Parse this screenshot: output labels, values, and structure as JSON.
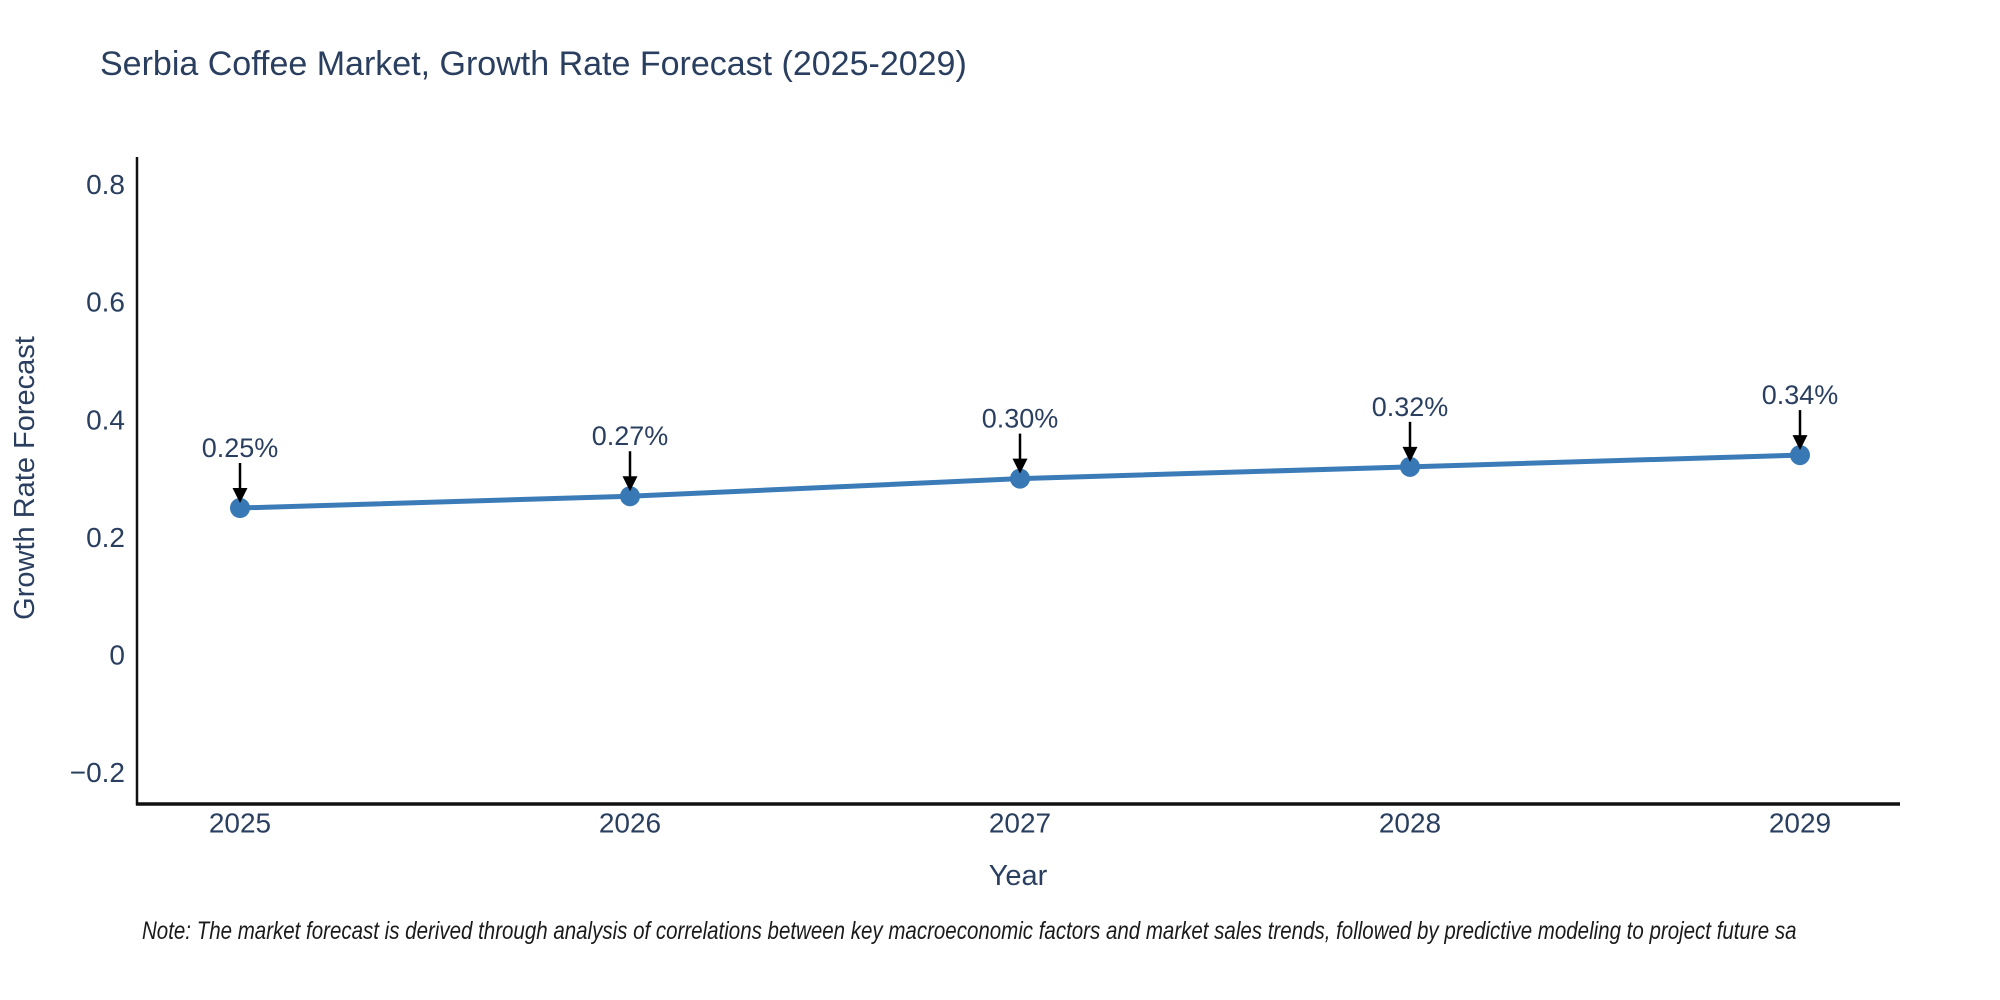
{
  "note": "Note: The market forecast is derived through analysis of correlations between key macroeconomic factors and market sales trends, followed by predictive modeling to project future sa",
  "chart_data": {
    "type": "line",
    "title": "Serbia Coffee Market, Growth Rate Forecast (2025-2029)",
    "xlabel": "Year",
    "ylabel": "Growth Rate Forecast",
    "x": [
      2025,
      2026,
      2027,
      2028,
      2029
    ],
    "xtick_labels": [
      "2025",
      "2026",
      "2027",
      "2028",
      "2029"
    ],
    "series": [
      {
        "name": "Growth Rate Forecast",
        "values": [
          0.25,
          0.27,
          0.3,
          0.32,
          0.34
        ]
      }
    ],
    "point_labels": [
      "0.25%",
      "0.27%",
      "0.30%",
      "0.32%",
      "0.34%"
    ],
    "yticks": [
      0.8,
      0.6,
      0.4,
      0.2,
      0,
      -0.2
    ],
    "ytick_labels": [
      "0.8",
      "0.6",
      "0.4",
      "0.2",
      "0",
      "−0.2"
    ],
    "ylim": [
      -0.26,
      0.85
    ],
    "grid": false,
    "legend_position": "none",
    "annotation_style": "arrow-down-to-point",
    "colors": {
      "line": "#3b7cb8",
      "marker": "#3878b4",
      "axis_line": "#111111",
      "text": "#2a3f5f",
      "annotation_arrow": "#000000",
      "note_text": "#1a1a1a",
      "background": "#ffffff"
    }
  }
}
